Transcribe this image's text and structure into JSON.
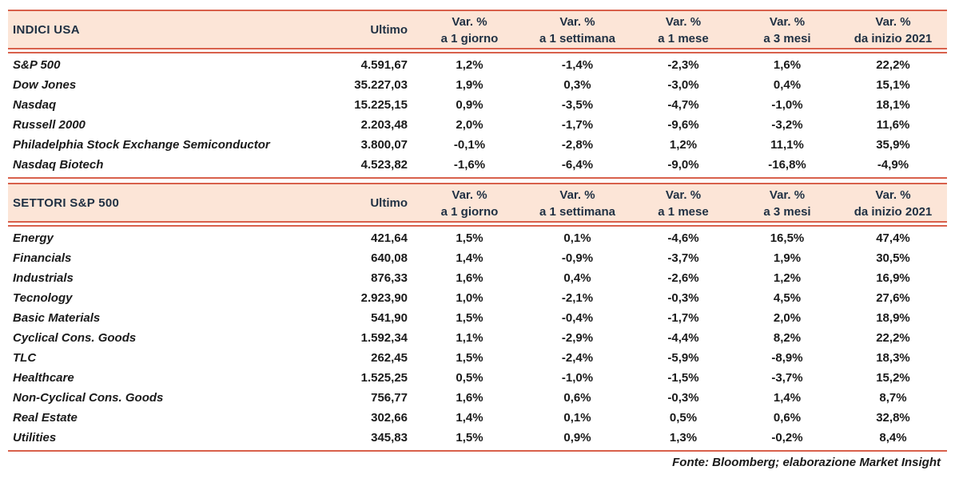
{
  "colors": {
    "accent_red": "#d8604b",
    "header_bg": "#fce5d7",
    "header_text": "#1f3043",
    "body_text": "#1a1a1a"
  },
  "columns": {
    "ultimo": "Ultimo",
    "var_label": "Var. %",
    "periods": [
      "a 1 giorno",
      "a 1 settimana",
      "a 1 mese",
      "a 3 mesi",
      "da inizio 2021"
    ]
  },
  "tables": [
    {
      "title": "INDICI USA",
      "rows": [
        {
          "name": "S&P 500",
          "ultimo": "4.591,67",
          "vars": [
            "1,2%",
            "-1,4%",
            "-2,3%",
            "1,6%",
            "22,2%"
          ]
        },
        {
          "name": "Dow Jones",
          "ultimo": "35.227,03",
          "vars": [
            "1,9%",
            "0,3%",
            "-3,0%",
            "0,4%",
            "15,1%"
          ]
        },
        {
          "name": "Nasdaq",
          "ultimo": "15.225,15",
          "vars": [
            "0,9%",
            "-3,5%",
            "-4,7%",
            "-1,0%",
            "18,1%"
          ]
        },
        {
          "name": "Russell 2000",
          "ultimo": "2.203,48",
          "vars": [
            "2,0%",
            "-1,7%",
            "-9,6%",
            "-3,2%",
            "11,6%"
          ]
        },
        {
          "name": "Philadelphia Stock Exchange Semiconductor",
          "ultimo": "3.800,07",
          "vars": [
            "-0,1%",
            "-2,8%",
            "1,2%",
            "11,1%",
            "35,9%"
          ]
        },
        {
          "name": "Nasdaq Biotech",
          "ultimo": "4.523,82",
          "vars": [
            "-1,6%",
            "-6,4%",
            "-9,0%",
            "-16,8%",
            "-4,9%"
          ]
        }
      ]
    },
    {
      "title": "SETTORI S&P 500",
      "rows": [
        {
          "name": "Energy",
          "ultimo": "421,64",
          "vars": [
            "1,5%",
            "0,1%",
            "-4,6%",
            "16,5%",
            "47,4%"
          ]
        },
        {
          "name": "Financials",
          "ultimo": "640,08",
          "vars": [
            "1,4%",
            "-0,9%",
            "-3,7%",
            "1,9%",
            "30,5%"
          ]
        },
        {
          "name": "Industrials",
          "ultimo": "876,33",
          "vars": [
            "1,6%",
            "0,4%",
            "-2,6%",
            "1,2%",
            "16,9%"
          ]
        },
        {
          "name": "Tecnology",
          "ultimo": "2.923,90",
          "vars": [
            "1,0%",
            "-2,1%",
            "-0,3%",
            "4,5%",
            "27,6%"
          ]
        },
        {
          "name": "Basic Materials",
          "ultimo": "541,90",
          "vars": [
            "1,5%",
            "-0,4%",
            "-1,7%",
            "2,0%",
            "18,9%"
          ]
        },
        {
          "name": "Cyclical Cons. Goods",
          "ultimo": "1.592,34",
          "vars": [
            "1,1%",
            "-2,9%",
            "-4,4%",
            "8,2%",
            "22,2%"
          ]
        },
        {
          "name": "TLC",
          "ultimo": "262,45",
          "vars": [
            "1,5%",
            "-2,4%",
            "-5,9%",
            "-8,9%",
            "18,3%"
          ]
        },
        {
          "name": "Healthcare",
          "ultimo": "1.525,25",
          "vars": [
            "0,5%",
            "-1,0%",
            "-1,5%",
            "-3,7%",
            "15,2%"
          ]
        },
        {
          "name": "Non-Cyclical Cons. Goods",
          "ultimo": "756,77",
          "vars": [
            "1,6%",
            "0,6%",
            "-0,3%",
            "1,4%",
            "8,7%"
          ]
        },
        {
          "name": "Real Estate",
          "ultimo": "302,66",
          "vars": [
            "1,4%",
            "0,1%",
            "0,5%",
            "0,6%",
            "32,8%"
          ]
        },
        {
          "name": "Utilities",
          "ultimo": "345,83",
          "vars": [
            "1,5%",
            "0,9%",
            "1,3%",
            "-0,2%",
            "8,4%"
          ]
        }
      ]
    }
  ],
  "footer": "Fonte: Bloomberg; elaborazione Market Insight"
}
